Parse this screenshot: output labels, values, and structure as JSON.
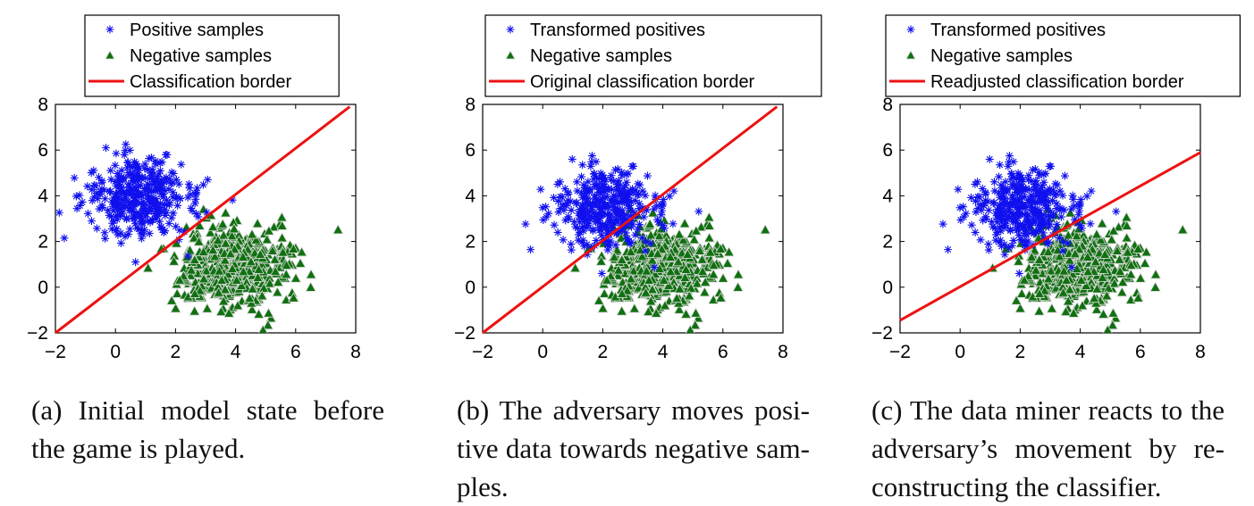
{
  "chart_data": [
    {
      "type": "scatter",
      "panel": "a",
      "caption": "(a) Initial model state before the game is played.",
      "xlim": [
        -2,
        8
      ],
      "ylim": [
        -2,
        8
      ],
      "xticks": [
        "−2",
        "0",
        "2",
        "4",
        "6",
        "8"
      ],
      "yticks": [
        "−2",
        "0",
        "2",
        "4",
        "6",
        "8"
      ],
      "grid": false,
      "legend_position": "top",
      "series": [
        {
          "name": "Positive samples",
          "kind": "scatter",
          "marker": "asterisk",
          "color": "#1010ee",
          "cluster": {
            "center": [
              0.8,
              4.0
            ],
            "spread": [
              0.85,
              0.85
            ],
            "count": 360
          }
        },
        {
          "name": "Negative samples",
          "kind": "scatter",
          "marker": "triangle",
          "color": "#107010",
          "cluster": {
            "center": [
              4.0,
              0.9
            ],
            "spread": [
              0.95,
              0.9
            ],
            "count": 520
          }
        },
        {
          "name": "Classification border",
          "kind": "line",
          "color": "#ee1111",
          "x": [
            -2,
            7.8
          ],
          "y": [
            -2,
            7.9
          ]
        }
      ]
    },
    {
      "type": "scatter",
      "panel": "b",
      "caption": "(b) The adversary moves posi-tive data towards negative sam-ples.",
      "xlim": [
        -2,
        8
      ],
      "ylim": [
        -2,
        8
      ],
      "xticks": [
        "−2",
        "0",
        "2",
        "4",
        "6",
        "8"
      ],
      "yticks": [
        "−2",
        "0",
        "2",
        "4",
        "6",
        "8"
      ],
      "grid": false,
      "legend_position": "top",
      "series": [
        {
          "name": "Transformed positives",
          "kind": "scatter",
          "marker": "asterisk",
          "color": "#1010ee",
          "cluster": {
            "center": [
              2.1,
              3.5
            ],
            "spread": [
              0.85,
              0.85
            ],
            "count": 360
          }
        },
        {
          "name": "Negative samples",
          "kind": "scatter",
          "marker": "triangle",
          "color": "#107010",
          "cluster": {
            "center": [
              4.0,
              0.9
            ],
            "spread": [
              0.95,
              0.9
            ],
            "count": 520
          }
        },
        {
          "name": "Original classification border",
          "kind": "line",
          "color": "#ee1111",
          "x": [
            -2,
            7.8
          ],
          "y": [
            -2,
            7.9
          ]
        }
      ]
    },
    {
      "type": "scatter",
      "panel": "c",
      "caption": "(c) The data miner reacts to the adversary’s movement by re-constructing the classifier.",
      "xlim": [
        -2,
        8
      ],
      "ylim": [
        -2,
        8
      ],
      "xticks": [
        "−2",
        "0",
        "2",
        "4",
        "6",
        "8"
      ],
      "yticks": [
        "−2",
        "0",
        "2",
        "4",
        "6",
        "8"
      ],
      "grid": false,
      "legend_position": "top",
      "series": [
        {
          "name": "Transformed positives",
          "kind": "scatter",
          "marker": "asterisk",
          "color": "#1010ee",
          "cluster": {
            "center": [
              2.1,
              3.5
            ],
            "spread": [
              0.85,
              0.85
            ],
            "count": 360
          }
        },
        {
          "name": "Negative samples",
          "kind": "scatter",
          "marker": "triangle",
          "color": "#107010",
          "cluster": {
            "center": [
              4.0,
              0.9
            ],
            "spread": [
              0.95,
              0.9
            ],
            "count": 520
          }
        },
        {
          "name": "Readjusted classification border",
          "kind": "line",
          "color": "#ee1111",
          "x": [
            -2,
            8
          ],
          "y": [
            -1.45,
            5.9
          ]
        }
      ]
    }
  ]
}
